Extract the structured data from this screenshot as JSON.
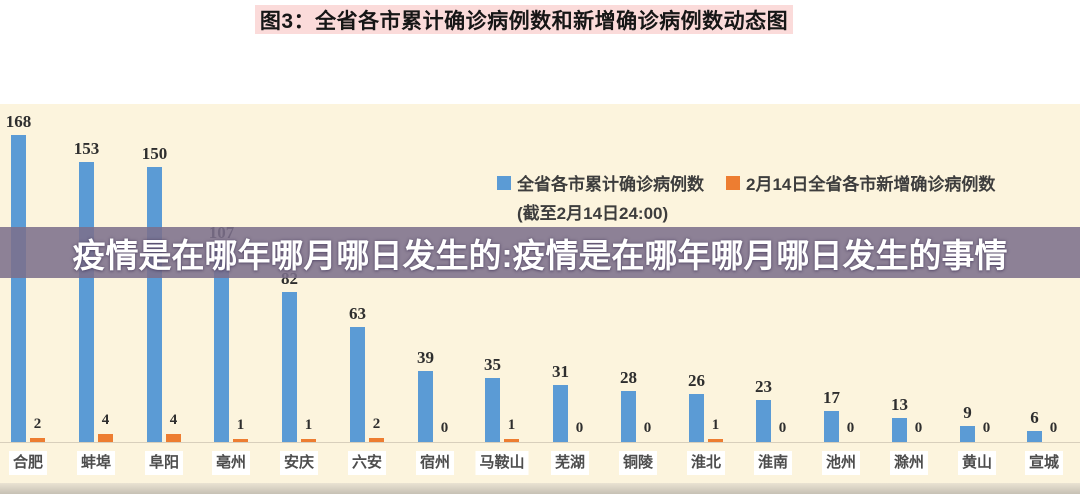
{
  "title_bar": {
    "text": "图3：全省各市累计确诊病例数和新增确诊病例数动态图"
  },
  "overlay_banner": {
    "text": "疫情是在哪年哪月哪日发生的:疫情是在哪年哪月哪日发生的事情"
  },
  "legend": {
    "series1": {
      "label": "全省各市累计确诊病例数",
      "sub_label": "(截至2月14日24:00)",
      "color": "#5b9bd5"
    },
    "series2": {
      "label": "2月14日全省各市新增确诊病例数",
      "color": "#ed7d31"
    }
  },
  "colors": {
    "cumulative_bar": "#5b9bd5",
    "new_cases_bar": "#ed7d31",
    "chart_background": "#fcf4dd",
    "title_background": "#fbdbda",
    "banner_background": "#7c6f8b",
    "value_label": "#2e2e2e",
    "city_label": "#4d4d4d"
  },
  "chart_data": {
    "type": "bar",
    "title": "图3：全省各市累计确诊病例数和新增确诊病例数动态图",
    "categories": [
      "合肥",
      "蚌埠",
      "阜阳",
      "亳州",
      "安庆",
      "六安",
      "宿州",
      "马鞍山",
      "芜湖",
      "铜陵",
      "淮北",
      "淮南",
      "池州",
      "滁州",
      "黄山",
      "宣城"
    ],
    "series": [
      {
        "name": "全省各市累计确诊病例数(截至2月14日24:00)",
        "color": "#5b9bd5",
        "values": [
          168,
          153,
          150,
          107,
          82,
          63,
          39,
          35,
          31,
          28,
          26,
          23,
          17,
          13,
          9,
          6
        ]
      },
      {
        "name": "2月14日全省各市新增确诊病例数",
        "color": "#ed7d31",
        "values": [
          2,
          4,
          4,
          1,
          1,
          2,
          0,
          1,
          0,
          0,
          1,
          0,
          0,
          0,
          0,
          0
        ]
      }
    ],
    "xlabel": "",
    "ylabel": "",
    "ylim": [
      0,
      185
    ],
    "grid": false,
    "data_labels": true,
    "legend_position": "top-right"
  }
}
